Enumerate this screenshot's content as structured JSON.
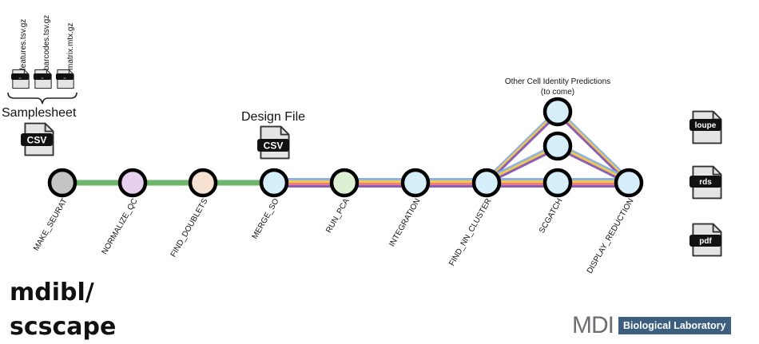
{
  "pipeline": {
    "nodes": [
      {
        "id": "make_seurat",
        "label": "MAKE_SEURAT",
        "fill": "#c4c4c4"
      },
      {
        "id": "normalize_qc",
        "label": "NORMALIZE_QC",
        "fill": "#e6d0ee"
      },
      {
        "id": "find_doublets",
        "label": "FIND_DOUBLETS",
        "fill": "#f7e2d2"
      },
      {
        "id": "merge_so",
        "label": "MERGE_SO",
        "fill": "#d5eefa"
      },
      {
        "id": "run_pca",
        "label": "RUN_PCA",
        "fill": "#dcefd3"
      },
      {
        "id": "integration",
        "label": "INTEGRATION",
        "fill": "#d5eefa"
      },
      {
        "id": "find_nn_cluster",
        "label": "FIND_NN_CLUSTER",
        "fill": "#d5eefa"
      },
      {
        "id": "scgatch",
        "label": "SCGATCH",
        "fill": "#d5eefa"
      },
      {
        "id": "display_reduction",
        "label": "DISPLAY_REDUCTION",
        "fill": "#d5eefa"
      }
    ],
    "branch_nodes_fill": "#d5eefa",
    "line_colors": {
      "green": "#6db56b",
      "blue": "#8fb3e0",
      "yellow": "#f2c94c",
      "pink": "#ec7d88",
      "purple": "#8d5fb4"
    }
  },
  "inputs": {
    "files": [
      "features.tsv.gz",
      "barcodes.tsv.gz",
      "matrix.mtx.gz"
    ],
    "file_badges": [
      "..",
      "..",
      ".."
    ],
    "samplesheet_label": "Samplesheet",
    "samplesheet_badge": "CSV",
    "design_label": "Design File",
    "design_badge": "CSV"
  },
  "annotation": {
    "line1": "Other Cell Identity Predictions",
    "line2": "(to come)"
  },
  "outputs": [
    "loupe",
    "rds",
    "pdf"
  ],
  "title": {
    "line1": "mdibl/",
    "line2": "scscape"
  },
  "logo": {
    "mdi": "MDI",
    "box": "Biological Laboratory"
  }
}
